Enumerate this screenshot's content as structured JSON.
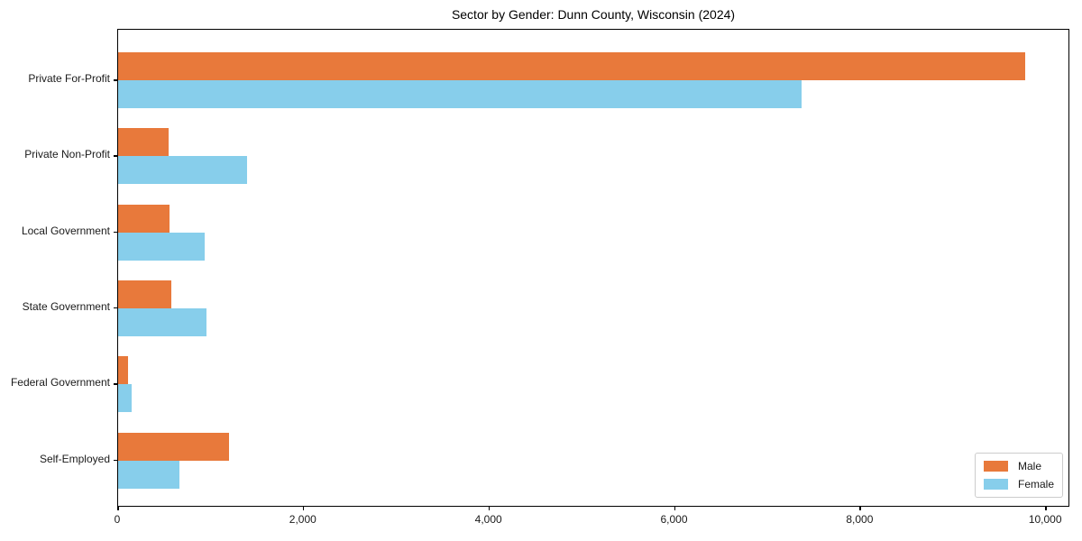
{
  "figure": {
    "title": "Sector by Gender: Dunn County, Wisconsin (2024)"
  },
  "chart_data": {
    "type": "bar",
    "orientation": "horizontal",
    "title": "Sector by Gender: Dunn County, Wisconsin (2024)",
    "xlabel": "",
    "ylabel": "",
    "categories": [
      "Private For-Profit",
      "Private Non-Profit",
      "Local Government",
      "State Government",
      "Federal Government",
      "Self-Employed"
    ],
    "series": [
      {
        "name": "Male",
        "color": "#e8793b",
        "values": [
          9770,
          545,
          555,
          575,
          110,
          1195
        ]
      },
      {
        "name": "Female",
        "color": "#87ceeb",
        "values": [
          7360,
          1390,
          930,
          950,
          145,
          660
        ]
      }
    ],
    "xlim": [
      0,
      10260
    ],
    "xticks": {
      "values": [
        0,
        2000,
        4000,
        6000,
        8000,
        10000
      ],
      "labels": [
        "0",
        "2,000",
        "4,000",
        "6,000",
        "8,000",
        "10,000"
      ]
    },
    "legend": {
      "position": "lower right",
      "labels": [
        "Male",
        "Female"
      ]
    },
    "grid": false,
    "colors": {
      "male": "#e8793b",
      "female": "#87ceeb",
      "axis": "#000000",
      "text": "#1a1a1a",
      "background": "#ffffff",
      "legend_border": "#cccccc"
    }
  }
}
